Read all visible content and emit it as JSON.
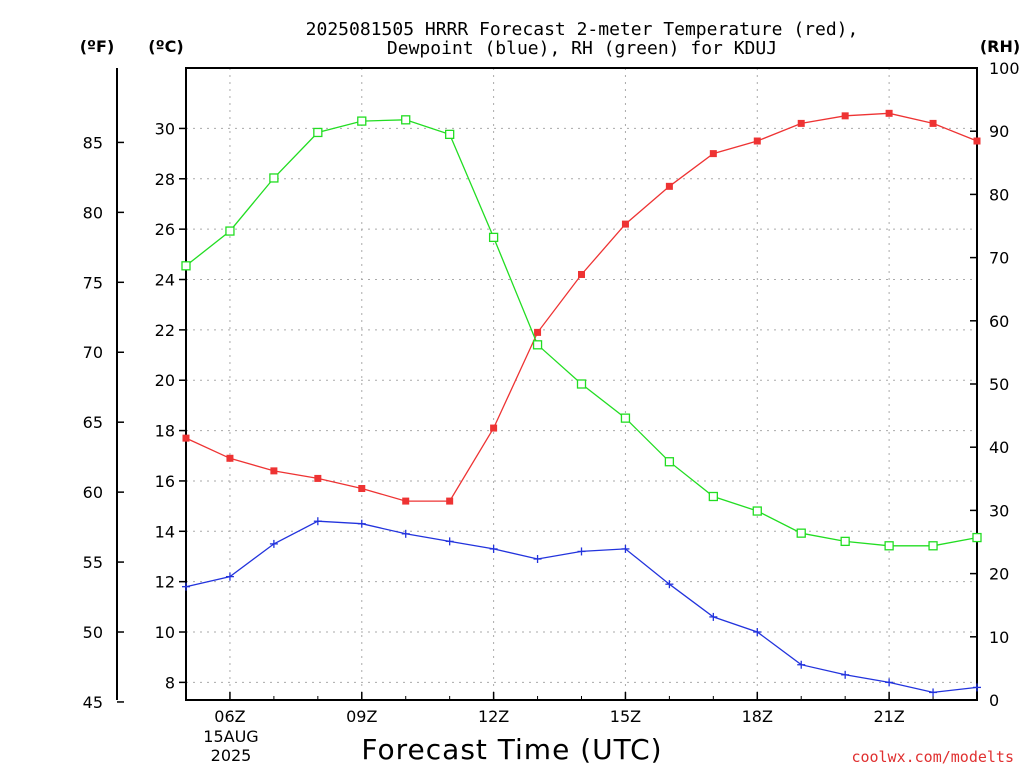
{
  "chart_data": {
    "type": "line",
    "title_line1": "2025081505 HRRR Forecast 2-meter Temperature (red),",
    "title_line2": "Dewpoint (blue), RH (green) for KDUJ",
    "xlabel": "Forecast Time (UTC)",
    "credit": "coolwx.com/modelts",
    "unit_f": "(ºF)",
    "unit_c": "(ºC)",
    "unit_rh": "(RH)",
    "x_hours": [
      5,
      6,
      7,
      8,
      9,
      10,
      11,
      12,
      13,
      14,
      15,
      16,
      17,
      18,
      19,
      20,
      21,
      22,
      23
    ],
    "xlim": [
      5,
      23
    ],
    "x_tick_hours": [
      6,
      9,
      12,
      15,
      18,
      21
    ],
    "x_tick_labels": [
      "06Z",
      "09Z",
      "12Z",
      "15Z",
      "18Z",
      "21Z"
    ],
    "x_date_line1": "15AUG",
    "x_date_line2": "2025",
    "c_ylim": [
      7.3,
      32.4
    ],
    "c_ticks": [
      8,
      10,
      12,
      14,
      16,
      18,
      20,
      22,
      24,
      26,
      28,
      30
    ],
    "f_ticks": [
      45,
      50,
      55,
      60,
      65,
      70,
      75,
      80,
      85
    ],
    "rh_ylim": [
      0,
      100
    ],
    "rh_ticks": [
      0,
      10,
      20,
      30,
      40,
      50,
      60,
      70,
      80,
      90,
      100
    ],
    "grid": true,
    "series": [
      {
        "name": "Temperature",
        "axis": "C",
        "color": "#ee3333",
        "marker": "filled-square",
        "values": [
          17.7,
          16.9,
          16.4,
          16.1,
          15.7,
          15.2,
          15.2,
          18.1,
          21.9,
          24.2,
          26.2,
          27.7,
          29.0,
          29.5,
          30.2,
          30.5,
          30.6,
          30.2,
          29.5
        ]
      },
      {
        "name": "Dewpoint",
        "axis": "C",
        "color": "#2233dd",
        "marker": "plus",
        "values": [
          11.8,
          12.2,
          13.5,
          14.4,
          14.3,
          13.9,
          13.6,
          13.3,
          12.9,
          13.2,
          13.3,
          11.9,
          10.6,
          10.0,
          8.7,
          8.3,
          8.0,
          7.6,
          7.8
        ]
      },
      {
        "name": "RH",
        "axis": "RH",
        "color": "#22dd22",
        "marker": "open-square",
        "values": [
          68.7,
          74.2,
          82.6,
          89.8,
          91.6,
          91.8,
          89.5,
          73.2,
          56.2,
          50.0,
          44.6,
          37.7,
          32.2,
          29.9,
          26.4,
          25.1,
          24.4,
          24.4,
          25.7
        ]
      }
    ]
  }
}
